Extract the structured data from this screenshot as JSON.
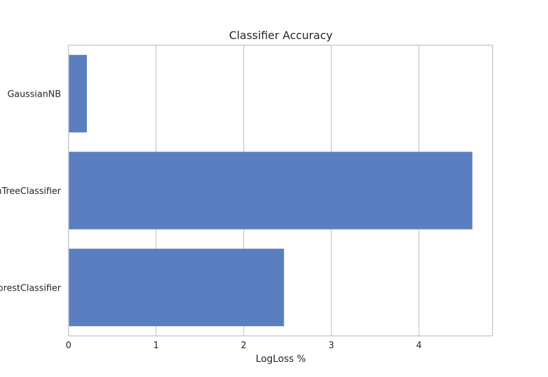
{
  "chart_data": {
    "type": "bar",
    "orientation": "horizontal",
    "title": "Classifier Accuracy",
    "xlabel": "LogLoss %",
    "ylabel": "",
    "categories": [
      "GaussianNB",
      "DecisionTreeClassifier",
      "RandomForestClassifier"
    ],
    "values": [
      0.21,
      4.61,
      2.46
    ],
    "xlim": [
      0,
      4.84
    ],
    "xticks": [
      0,
      1,
      2,
      3,
      4
    ],
    "grid": true,
    "bar_color": "#5b7ec1",
    "grid_color": "#cccccc",
    "frame_color": "#cccccc"
  }
}
